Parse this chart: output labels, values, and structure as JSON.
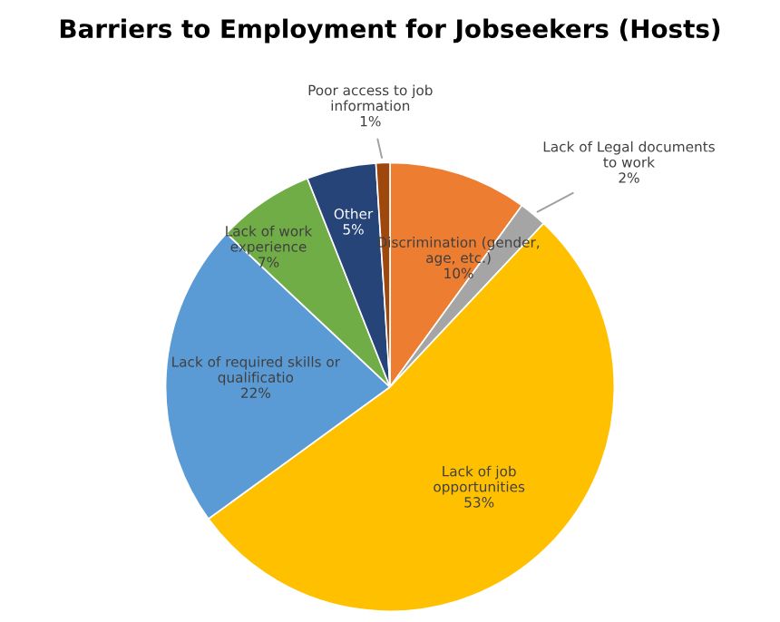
{
  "chart_data": {
    "type": "pie",
    "title": "Barriers to Employment for Jobseekers (Hosts)",
    "categories": [
      "Discrimination (gender,\nage, etc.)",
      "Lack of Legal documents\nto work",
      "Lack of job\nopportunities",
      "Lack of required skills or\nqualificatio",
      "Lack of work\nexperience",
      "Other",
      "Poor access to job\ninformation"
    ],
    "values": [
      10,
      2,
      53,
      22,
      7,
      5,
      1
    ],
    "value_labels": [
      "10%",
      "2%",
      "53%",
      "22%",
      "7%",
      "5%",
      "1%"
    ],
    "colors": [
      "#ed7d31",
      "#a5a5a5",
      "#ffc000",
      "#5b9bd5",
      "#70ad47",
      "#264478",
      "#9e480e"
    ],
    "legend": false
  }
}
